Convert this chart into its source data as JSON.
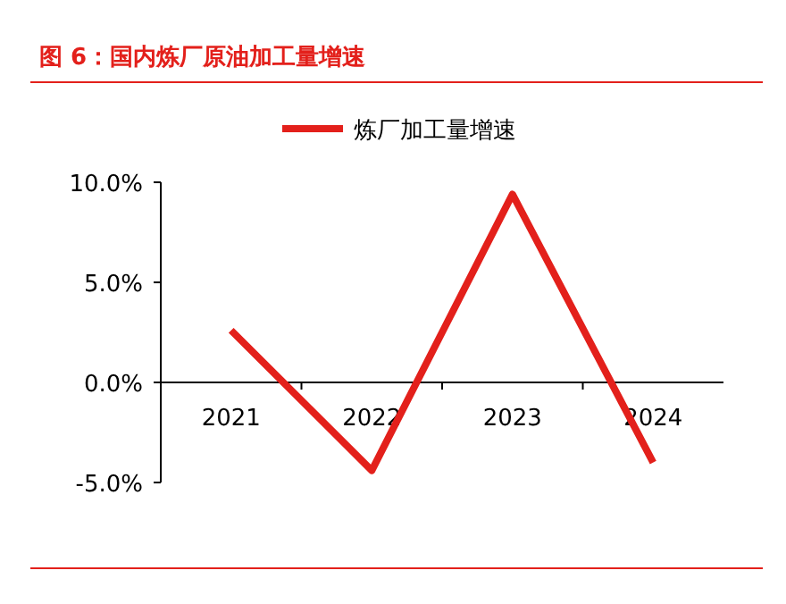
{
  "chart_data": {
    "type": "line",
    "title": "图 6：国内炼厂原油加工量增速",
    "categories": [
      "2021",
      "2022",
      "2023",
      "2024"
    ],
    "series": [
      {
        "name": "炼厂加工量增速",
        "color": "#e3201b",
        "values": [
          2.6,
          -4.4,
          9.4,
          -4.0
        ]
      }
    ],
    "ylim": [
      -5,
      10
    ],
    "yticks": [
      {
        "value": -5,
        "label": "-5.0%"
      },
      {
        "value": 0,
        "label": "0.0%"
      },
      {
        "value": 5,
        "label": "5.0%"
      },
      {
        "value": 10,
        "label": "10.0%"
      }
    ],
    "legend": "top",
    "grid": false
  }
}
